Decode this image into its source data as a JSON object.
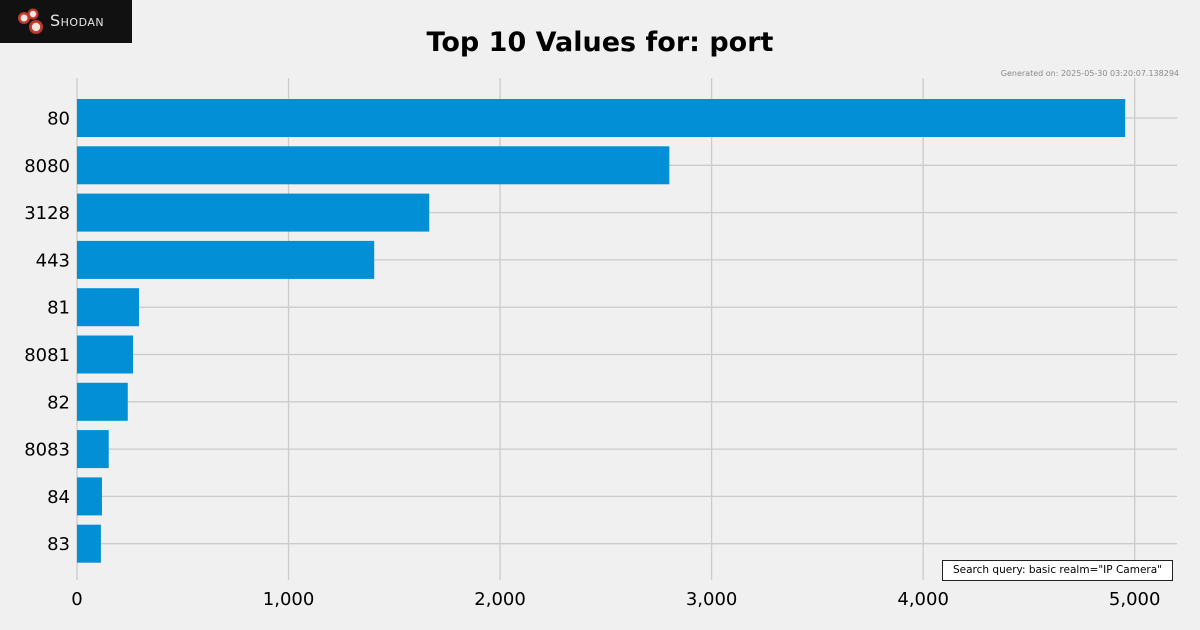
{
  "brand": {
    "logo_text": "Shodan"
  },
  "header": {
    "title": "Top 10 Values for: port",
    "generated": "Generated on: 2025-05-30 03:20:07.138294"
  },
  "search_query": "Search query: basic realm=\"IP Camera\"",
  "colors": {
    "bar": "#038fd6",
    "grid": "#cbcbcb",
    "background": "#f0f0f0"
  },
  "chart_data": {
    "type": "bar",
    "orientation": "horizontal",
    "title": "Top 10 Values for: port",
    "categories": [
      "80",
      "8080",
      "3128",
      "443",
      "81",
      "8081",
      "82",
      "8083",
      "84",
      "83"
    ],
    "values": [
      4955,
      2800,
      1665,
      1405,
      293,
      265,
      240,
      150,
      118,
      113
    ],
    "xlim": [
      0,
      5200
    ],
    "xticks": [
      0,
      1000,
      2000,
      3000,
      4000,
      5000
    ],
    "xtick_labels": [
      "0",
      "1,000",
      "2,000",
      "3,000",
      "4,000",
      "5,000"
    ],
    "xlabel": "",
    "ylabel": "",
    "grid": true
  }
}
